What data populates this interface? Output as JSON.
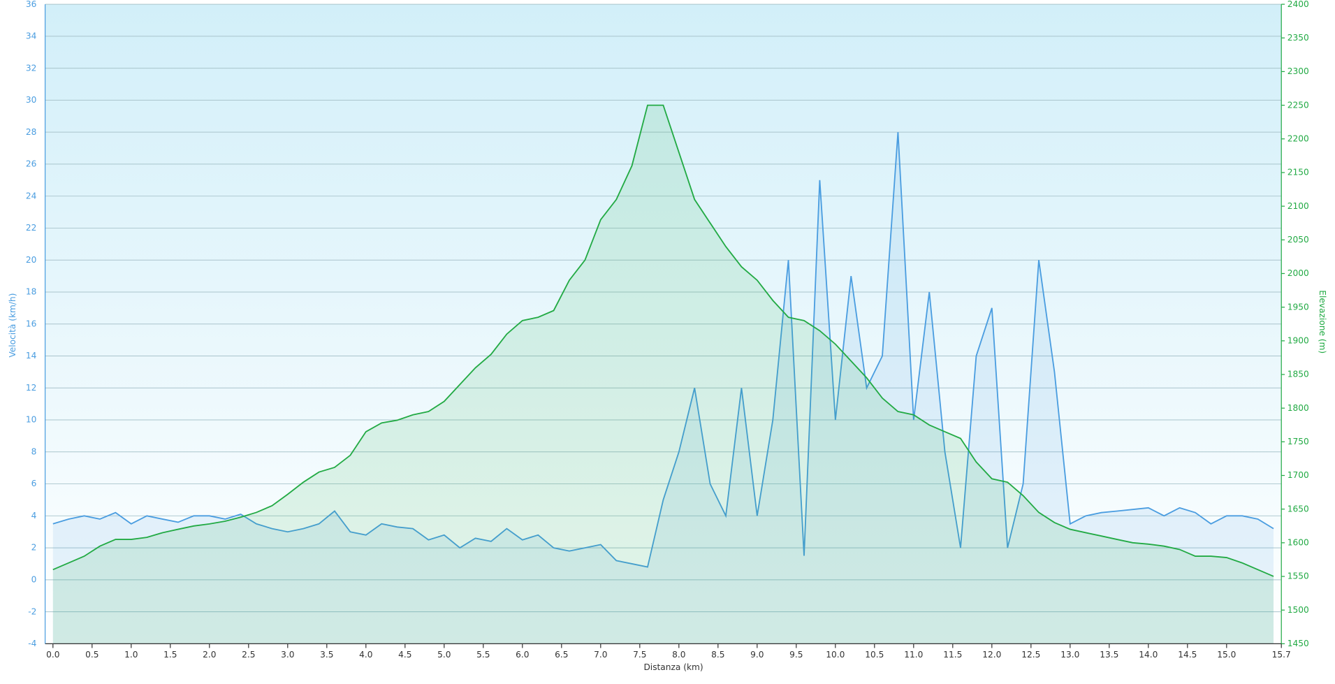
{
  "chart_data": {
    "type": "line",
    "xlabel": "Distanza  (km)",
    "ylabel": "Velocità (km/h)",
    "y2label": "Elevazione (m)",
    "x": [
      0,
      0.2,
      0.4,
      0.6,
      0.8,
      1.0,
      1.2,
      1.4,
      1.6,
      1.8,
      2.0,
      2.2,
      2.4,
      2.6,
      2.8,
      3.0,
      3.2,
      3.4,
      3.6,
      3.8,
      4.0,
      4.2,
      4.4,
      4.6,
      4.8,
      5.0,
      5.2,
      5.4,
      5.6,
      5.8,
      6.0,
      6.2,
      6.4,
      6.6,
      6.8,
      7.0,
      7.2,
      7.4,
      7.6,
      7.8,
      8.0,
      8.2,
      8.4,
      8.6,
      8.8,
      9.0,
      9.2,
      9.4,
      9.6,
      9.8,
      10.0,
      10.2,
      10.4,
      10.6,
      10.8,
      11.0,
      11.2,
      11.4,
      11.6,
      11.8,
      12.0,
      12.2,
      12.4,
      12.6,
      12.8,
      13.0,
      13.2,
      13.4,
      13.6,
      13.8,
      14.0,
      14.2,
      14.4,
      14.6,
      14.8,
      15.0,
      15.2,
      15.4,
      15.6
    ],
    "series": [
      {
        "name": "Velocità",
        "color": "#4a9de0",
        "axis": "y",
        "values": [
          3.5,
          3.8,
          4.0,
          3.8,
          4.2,
          3.5,
          4.0,
          3.8,
          3.6,
          4.0,
          4.0,
          3.8,
          4.1,
          3.5,
          3.2,
          3.0,
          3.2,
          3.5,
          4.3,
          3.0,
          2.8,
          3.5,
          3.3,
          3.2,
          2.5,
          2.8,
          2.0,
          2.6,
          2.4,
          3.2,
          2.5,
          2.8,
          2.0,
          1.8,
          2.0,
          2.2,
          1.2,
          1.0,
          0.8,
          5,
          8,
          12,
          6,
          4,
          12,
          4,
          10,
          20,
          1.5,
          25,
          10,
          19,
          12,
          14,
          28,
          10,
          18,
          8,
          2,
          14,
          17,
          2,
          6,
          20,
          13,
          3.5,
          4,
          4.2,
          4.3,
          4.4,
          4.5,
          4,
          4.5,
          4.2,
          3.5,
          4,
          4,
          3.8,
          3.2
        ]
      },
      {
        "name": "Elevazione",
        "color": "#22aa44",
        "axis": "y2",
        "values": [
          1560,
          1570,
          1580,
          1595,
          1605,
          1605,
          1608,
          1615,
          1620,
          1625,
          1628,
          1632,
          1638,
          1645,
          1655,
          1672,
          1690,
          1705,
          1712,
          1730,
          1765,
          1778,
          1782,
          1790,
          1795,
          1810,
          1835,
          1860,
          1880,
          1910,
          1930,
          1935,
          1945,
          1990,
          2020,
          2080,
          2110,
          2160,
          2250,
          2250,
          2180,
          2110,
          2075,
          2040,
          2010,
          1990,
          1960,
          1935,
          1930,
          1915,
          1895,
          1870,
          1845,
          1815,
          1795,
          1790,
          1775,
          1765,
          1755,
          1720,
          1695,
          1690,
          1670,
          1645,
          1630,
          1620,
          1615,
          1610,
          1605,
          1600,
          1598,
          1595,
          1590,
          1580,
          1580,
          1578,
          1570,
          1560,
          1550
        ]
      }
    ],
    "xlim": [
      -0.1,
      15.7
    ],
    "xticks": [
      {
        "value": 0,
        "label": "0.0"
      },
      0.5,
      {
        "value": 1,
        "label": "1.0"
      },
      1.5,
      {
        "value": 2,
        "label": "2.0"
      },
      2.5,
      {
        "value": 3,
        "label": "3.0"
      },
      3.5,
      {
        "value": 4,
        "label": "4.0"
      },
      4.5,
      {
        "value": 5,
        "label": "5.0"
      },
      5.5,
      {
        "value": 6,
        "label": "6.0"
      },
      6.5,
      {
        "value": 7,
        "label": "7.0"
      },
      7.5,
      {
        "value": 8,
        "label": "8.0"
      },
      8.5,
      {
        "value": 9,
        "label": "9.0"
      },
      9.5,
      {
        "value": 10,
        "label": "10.0"
      },
      10.5,
      {
        "value": 11,
        "label": "11.0"
      },
      11.5,
      {
        "value": 12,
        "label": "12.0"
      },
      12.5,
      {
        "value": 13,
        "label": "13.0"
      },
      13.5,
      {
        "value": 14,
        "label": "14.0"
      },
      14.5,
      {
        "value": 15,
        "label": "15.0"
      },
      15.7
    ],
    "ylim": [
      -4,
      36
    ],
    "yticks": [
      -4,
      -2,
      0,
      2,
      4,
      6,
      8,
      10,
      12,
      14,
      16,
      18,
      20,
      22,
      24,
      26,
      28,
      30,
      32,
      34,
      36
    ],
    "y2lim": [
      1450,
      2400
    ],
    "y2ticks": [
      1450,
      1500,
      1550,
      1600,
      1650,
      1700,
      1750,
      1800,
      1850,
      1900,
      1950,
      2000,
      2050,
      2100,
      2150,
      2200,
      2250,
      2300,
      2350,
      2400
    ],
    "grid": true
  }
}
